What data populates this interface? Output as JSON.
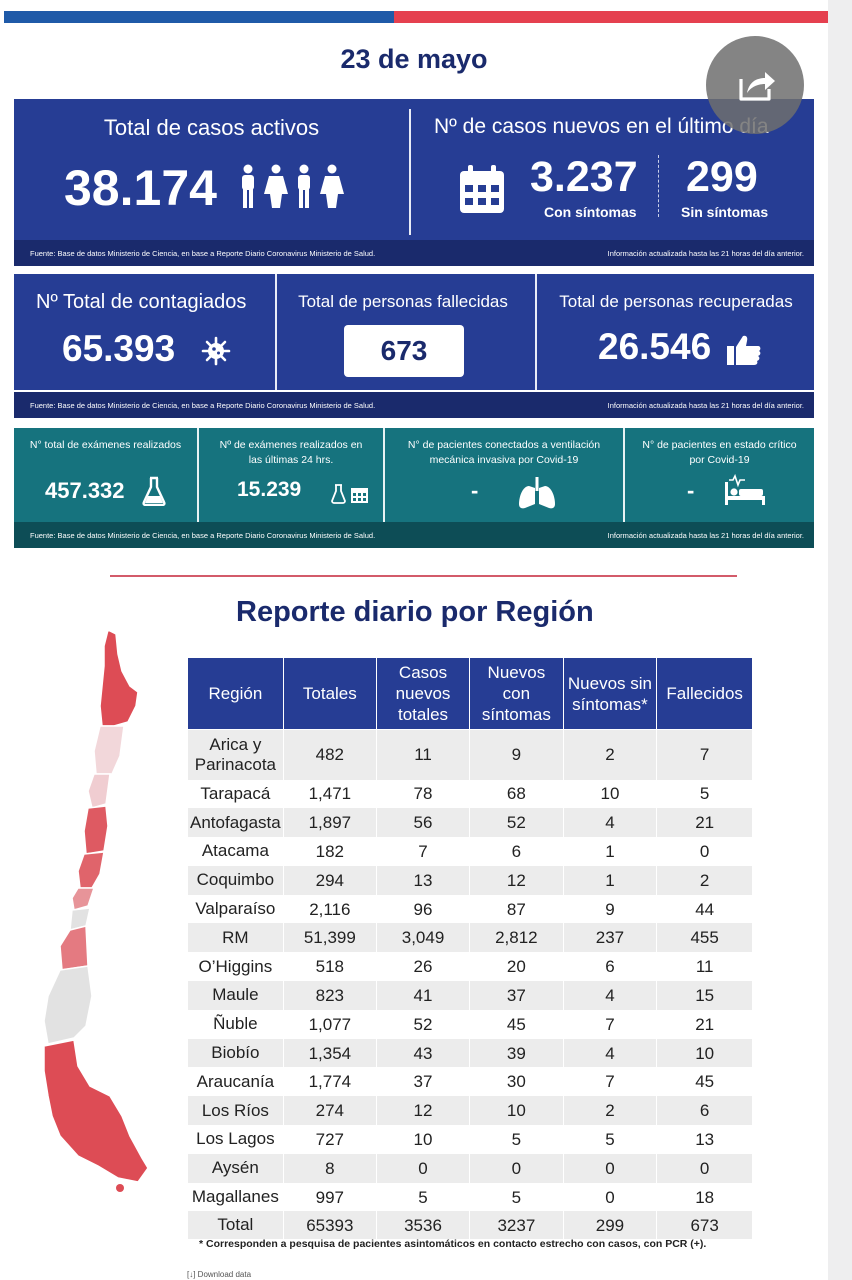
{
  "date_title": "23 de mayo",
  "active": {
    "title": "Total de casos activos",
    "value": "38.174",
    "new_title": "Nº de casos nuevos en el último día",
    "with_symptoms_value": "3.237",
    "with_symptoms_label": "Con síntomas",
    "without_symptoms_value": "299",
    "without_symptoms_label": "Sin síntomas"
  },
  "footer": {
    "source": "Fuente: Base de datos Ministerio de Ciencia, en base a Reporte Diario Coronavirus Ministerio de Salud.",
    "updated": "Información actualizada hasta las 21 horas  del día anterior."
  },
  "totals": {
    "infected_title": "Nº Total de contagiados",
    "infected_value": "65.393",
    "deceased_title": "Total de personas fallecidas",
    "deceased_value": "673",
    "recovered_title": "Total de personas recuperadas",
    "recovered_value": "26.546"
  },
  "exams": {
    "total_label": "N° total de exámenes realizados",
    "total_value": "457.332",
    "last24_label": "Nº de exámenes realizados en las últimas 24 hrs.",
    "last24_value": "15.239",
    "ventilation_label": "N° de pacientes conectados a ventilación mecánica invasiva por Covid-19",
    "ventilation_value": "-",
    "critical_label": "N° de pacientes en estado crítico por Covid-19",
    "critical_value": "-"
  },
  "region_report": {
    "title": "Reporte diario por Región",
    "headers": [
      "Región",
      "Totales",
      "Casos nuevos totales",
      "Nuevos con síntomas",
      "Nuevos sin síntomas*",
      "Fallecidos"
    ],
    "rows": [
      [
        "Arica y Parinacota",
        "482",
        "11",
        "9",
        "2",
        "7"
      ],
      [
        "Tarapacá",
        "1,471",
        "78",
        "68",
        "10",
        "5"
      ],
      [
        "Antofagasta",
        "1,897",
        "56",
        "52",
        "4",
        "21"
      ],
      [
        "Atacama",
        "182",
        "7",
        "6",
        "1",
        "0"
      ],
      [
        "Coquimbo",
        "294",
        "13",
        "12",
        "1",
        "2"
      ],
      [
        "Valparaíso",
        "2,116",
        "96",
        "87",
        "9",
        "44"
      ],
      [
        "RM",
        "51,399",
        "3,049",
        "2,812",
        "237",
        "455"
      ],
      [
        "O’Higgins",
        "518",
        "26",
        "20",
        "6",
        "11"
      ],
      [
        "Maule",
        "823",
        "41",
        "37",
        "4",
        "15"
      ],
      [
        "Ñuble",
        "1,077",
        "52",
        "45",
        "7",
        "21"
      ],
      [
        "Biobío",
        "1,354",
        "43",
        "39",
        "4",
        "10"
      ],
      [
        "Araucanía",
        "1,774",
        "37",
        "30",
        "7",
        "45"
      ],
      [
        "Los Ríos",
        "274",
        "12",
        "10",
        "2",
        "6"
      ],
      [
        "Los Lagos",
        "727",
        "10",
        "5",
        "5",
        "13"
      ],
      [
        "Aysén",
        "8",
        "0",
        "0",
        "0",
        "0"
      ],
      [
        "Magallanes",
        "997",
        "5",
        "5",
        "0",
        "18"
      ],
      [
        "Total",
        "65393",
        "3536",
        "3237",
        "299",
        "673"
      ]
    ],
    "footnote": "* Corresponden a pesquisa de pacientes asintomáticos en contacto estrecho con casos, con PCR (+).",
    "download": "[↓]  Download data"
  },
  "colors": {
    "navy": "#263d94",
    "dark_navy": "#1a2a6c",
    "teal": "#16737e",
    "flag_blue": "#1f5aa8",
    "flag_red": "#e5404f",
    "map_red": "#dd4c55",
    "map_light": "#e2e2e2"
  },
  "icons": [
    "share-icon",
    "people-icon",
    "calendar-icon",
    "virus-icon",
    "thumbs-up-icon",
    "flask-icon",
    "lungs-icon",
    "hospital-bed-icon"
  ]
}
